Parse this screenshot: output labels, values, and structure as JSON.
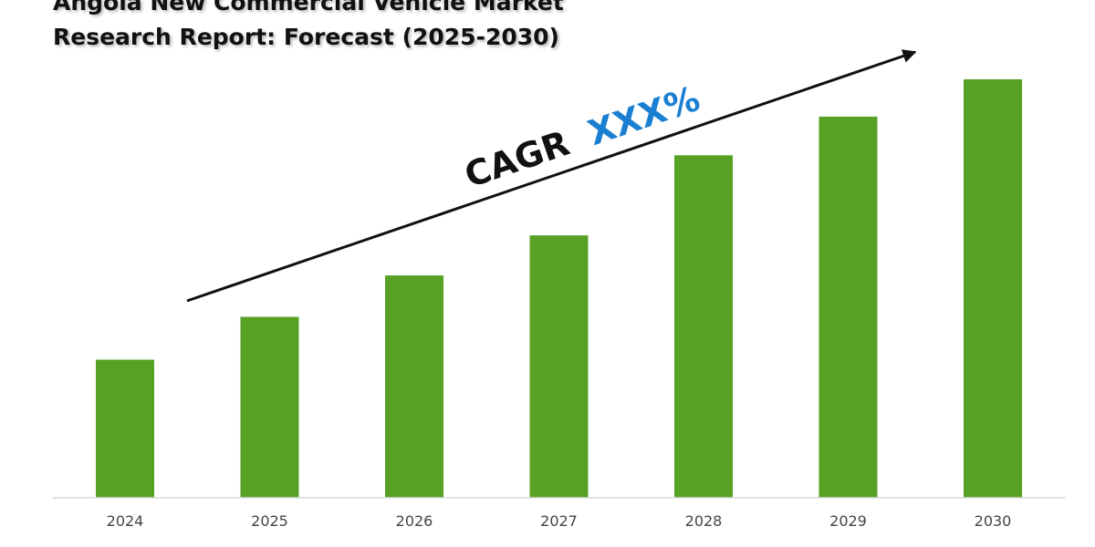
{
  "title": {
    "line1": "Angola New Commercial Vehicle Market",
    "line2": "Research Report: Forecast (2025-2030)"
  },
  "annotation": {
    "prefix": "CAGR",
    "value": "XXX%",
    "prefix_color": "#111111",
    "value_color": "#1b7fd1"
  },
  "colors": {
    "bar": "#57a125",
    "axis": "#d9d9d9",
    "arrow": "#111111"
  },
  "chart_data": {
    "type": "bar",
    "categories": [
      "2024",
      "2025",
      "2026",
      "2027",
      "2028",
      "2029",
      "2030"
    ],
    "values": [
      1.0,
      1.31,
      1.61,
      1.9,
      2.48,
      2.76,
      3.03
    ],
    "ylim": [
      0,
      3.03
    ],
    "grid": false,
    "legend": "none",
    "xlabel": "",
    "ylabel": ""
  }
}
